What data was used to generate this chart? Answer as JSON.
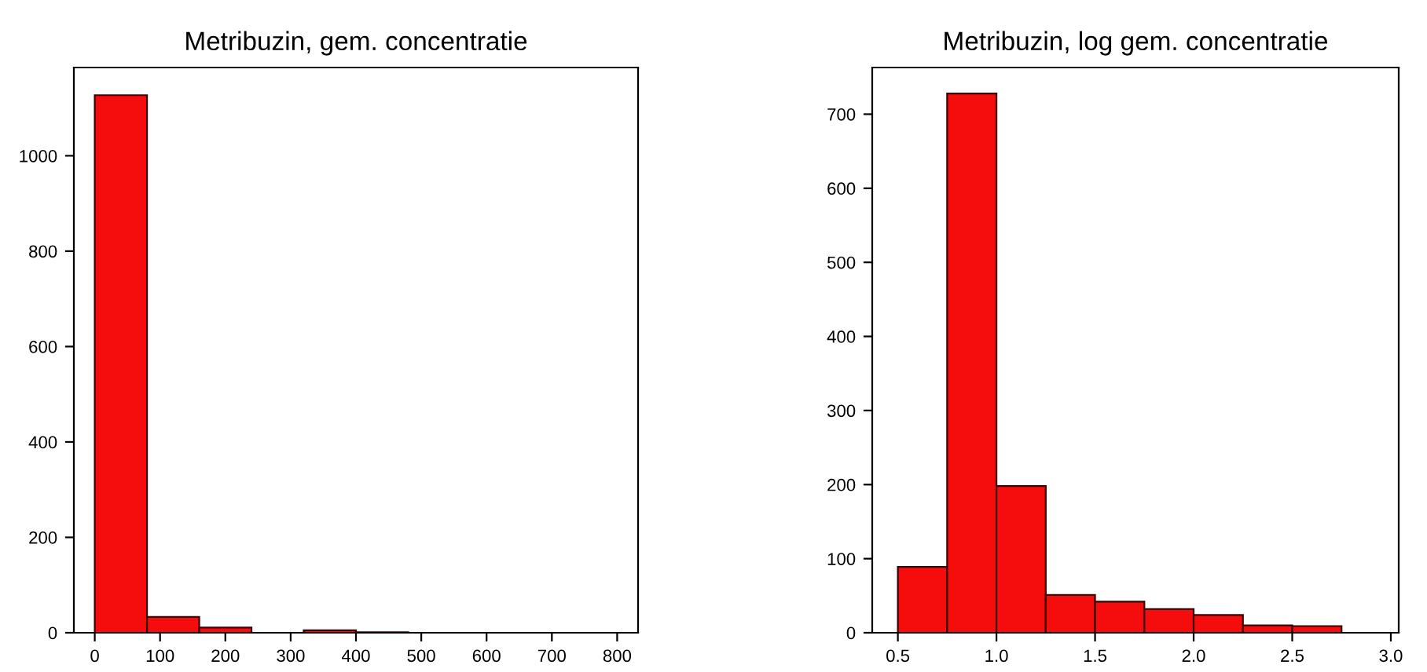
{
  "chart_data": [
    {
      "type": "histogram",
      "title": "Metribuzin, gem. concentratie",
      "bins": [
        0,
        80,
        160,
        240,
        320,
        400,
        480
      ],
      "values": [
        1127,
        33,
        11,
        null,
        5,
        1
      ],
      "color": "#f50d0d",
      "xlim": [
        -32,
        832
      ],
      "xticks": [
        0,
        100,
        200,
        300,
        400,
        500,
        600,
        700,
        800
      ],
      "ylim": [
        0,
        1185
      ],
      "yticks": [
        0,
        200,
        400,
        600,
        800,
        1000
      ],
      "grid": false
    },
    {
      "type": "histogram",
      "title": "Metribuzin, log gem. concentratie",
      "bins": [
        0.5,
        0.75,
        1.0,
        1.25,
        1.5,
        1.75,
        2.0,
        2.25,
        2.5,
        2.75
      ],
      "values": [
        89,
        728,
        198,
        51,
        42,
        32,
        24,
        10,
        9
      ],
      "color": "#f50d0d",
      "xlim": [
        0.37,
        3.04
      ],
      "xticks": [
        {
          "value": 0.5,
          "label": "0.5"
        },
        {
          "value": 1.0,
          "label": "1.0"
        },
        {
          "value": 1.5,
          "label": "1.5"
        },
        {
          "value": 2.0,
          "label": "2.0"
        },
        {
          "value": 2.5,
          "label": "2.5"
        },
        {
          "value": 3.0,
          "label": "3.0"
        }
      ],
      "ylim": [
        0,
        763
      ],
      "yticks": [
        0,
        100,
        200,
        300,
        400,
        500,
        600,
        700
      ],
      "grid": false
    }
  ]
}
